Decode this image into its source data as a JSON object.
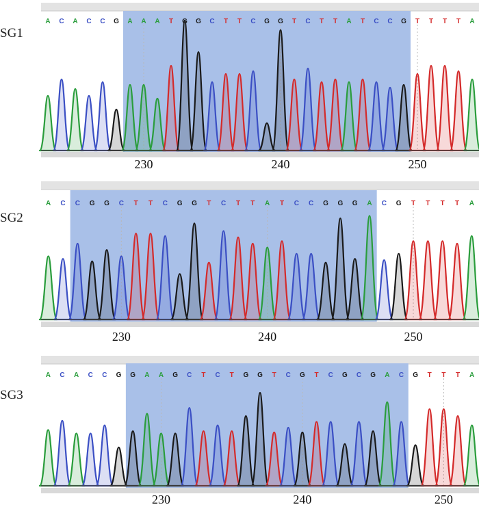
{
  "chart_data": [
    {
      "type": "line",
      "title": "SG1",
      "sequence": "ACACCGAAATGGCTTCGGTCTTATCCGTTTTA",
      "first_position": 223,
      "highlight": [
        229,
        249
      ],
      "x_ticks": [
        230,
        240,
        250
      ],
      "xlim": [
        222.5,
        254.5
      ],
      "peak_heights": [
        0.4,
        0.52,
        0.45,
        0.4,
        0.5,
        0.3,
        0.48,
        0.48,
        0.38,
        0.62,
        0.95,
        0.72,
        0.5,
        0.56,
        0.56,
        0.58,
        0.2,
        0.88,
        0.52,
        0.6,
        0.5,
        0.52,
        0.5,
        0.52,
        0.5,
        0.46,
        0.48,
        0.56,
        0.62,
        0.62,
        0.58,
        0.52
      ]
    },
    {
      "type": "line",
      "title": "SG2",
      "sequence": "ACCGGCTTCGGTCTTATCCGGGACGTTTTA",
      "first_position": 225,
      "highlight": [
        227,
        247
      ],
      "x_ticks": [
        230,
        240,
        250
      ],
      "xlim": [
        224.5,
        254.5
      ],
      "peak_heights": [
        0.5,
        0.48,
        0.6,
        0.46,
        0.55,
        0.5,
        0.68,
        0.68,
        0.66,
        0.36,
        0.76,
        0.45,
        0.7,
        0.65,
        0.6,
        0.57,
        0.62,
        0.52,
        0.52,
        0.45,
        0.8,
        0.48,
        0.82,
        0.47,
        0.52,
        0.62,
        0.62,
        0.62,
        0.6,
        0.66
      ]
    },
    {
      "type": "line",
      "title": "SG3",
      "sequence": "ACACCGGAAGCTCTGGTCGTCGCGACGTTTA",
      "first_position": 222,
      "highlight": [
        228,
        247
      ],
      "x_ticks": [
        230,
        240,
        250
      ],
      "xlim": [
        221.5,
        252.5
      ],
      "peak_heights": [
        0.48,
        0.56,
        0.45,
        0.45,
        0.52,
        0.33,
        0.47,
        0.62,
        0.45,
        0.45,
        0.67,
        0.47,
        0.52,
        0.47,
        0.6,
        0.8,
        0.46,
        0.5,
        0.46,
        0.55,
        0.55,
        0.36,
        0.55,
        0.47,
        0.72,
        0.55,
        0.35,
        0.66,
        0.66,
        0.6,
        0.52
      ]
    }
  ],
  "colors": {
    "A": "#2a9d3c",
    "C": "#3b4fc4",
    "G": "#1a1a1a",
    "T": "#d42a2a",
    "highlight": "#a9c0e8",
    "header_bar": "#e3e3e3"
  }
}
